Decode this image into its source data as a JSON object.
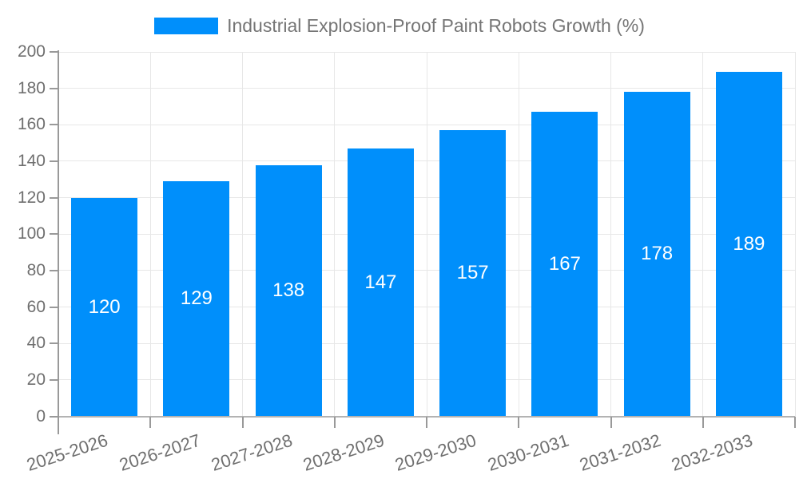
{
  "legend": {
    "label": "Industrial Explosion-Proof Paint Robots Growth (%)"
  },
  "colors": {
    "bar": "#008FFB",
    "bar_label": "#FFFFFF",
    "grid": "#E7E7E7",
    "axis_line": "#999999",
    "baseline": "#B3B3B3",
    "tick_label": "#6F6F6F",
    "legend_text": "#757575",
    "background": "#FFFFFF"
  },
  "chart_data": {
    "type": "bar",
    "title": "Industrial Explosion-Proof Paint Robots Growth (%)",
    "categories": [
      "2025-2026",
      "2026-2027",
      "2027-2028",
      "2028-2029",
      "2029-2030",
      "2030-2031",
      "2031-2032",
      "2032-2033"
    ],
    "values": [
      120,
      129,
      138,
      147,
      157,
      167,
      178,
      189
    ],
    "xlabel": "",
    "ylabel": "",
    "ylim": [
      0,
      200
    ],
    "ytick_step": 20,
    "ytick_labels": [
      "0",
      "20",
      "40",
      "60",
      "80",
      "100",
      "120",
      "140",
      "160",
      "180",
      "200"
    ],
    "grid": true,
    "gridlines": "horizontal-and-vertical",
    "legend_position": "top-center",
    "bar_labels_visible": true,
    "bar_label_position": "inside-center"
  }
}
